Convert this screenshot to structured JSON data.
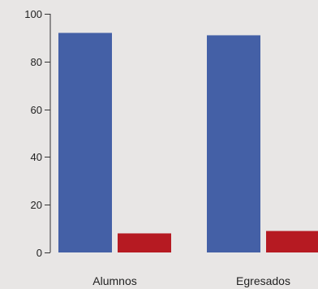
{
  "chart_data": {
    "type": "bar",
    "categories": [
      "Alumnos",
      "Egresados"
    ],
    "series": [
      {
        "values": [
          92,
          91
        ],
        "color": "#4460a6"
      },
      {
        "values": [
          8,
          9
        ],
        "color": "#b61a22"
      }
    ],
    "ylim": [
      0,
      100
    ],
    "yticks": [
      0,
      20,
      40,
      60,
      80,
      100
    ],
    "ytick_labels": [
      "0",
      "20",
      "40",
      "60",
      "80",
      "100"
    ],
    "grid": false,
    "legend": "none"
  }
}
